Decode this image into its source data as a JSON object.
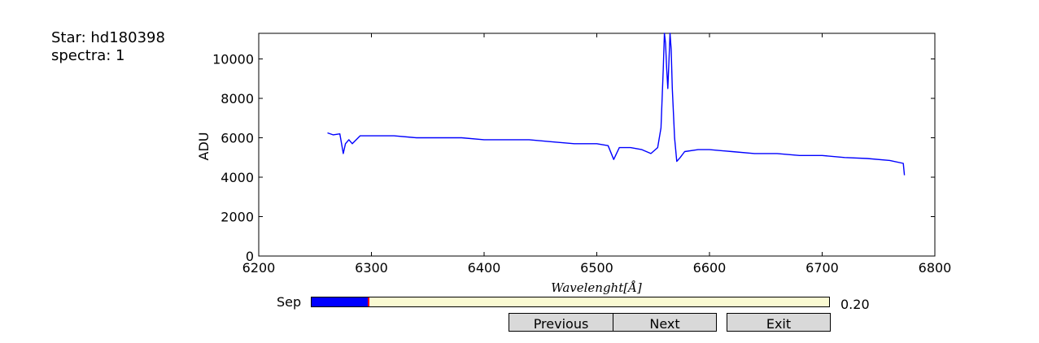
{
  "info": {
    "star_line": "Star: hd180398",
    "spectra_line": "spectra: 1"
  },
  "chart_data": {
    "type": "line",
    "title": "",
    "xlabel": "Wavelenght[Å]",
    "ylabel": "ADU",
    "xlim": [
      6200,
      6800
    ],
    "ylim": [
      0,
      11300
    ],
    "xticks": [
      "6200",
      "6300",
      "6400",
      "6500",
      "6600",
      "6700",
      "6800"
    ],
    "yticks": [
      "0",
      "2000",
      "4000",
      "6000",
      "8000",
      "10000"
    ],
    "grid": false,
    "series": [
      {
        "color": "#0000ff",
        "x": [
          6261,
          6266,
          6272,
          6275,
          6277,
          6280,
          6283,
          6290,
          6300,
          6320,
          6340,
          6360,
          6380,
          6400,
          6420,
          6440,
          6460,
          6480,
          6500,
          6510,
          6515,
          6520,
          6530,
          6540,
          6548,
          6554,
          6557,
          6559,
          6560,
          6561,
          6562,
          6563,
          6564,
          6565,
          6566,
          6567,
          6569,
          6571,
          6574,
          6578,
          6590,
          6600,
          6620,
          6640,
          6660,
          6680,
          6700,
          6720,
          6740,
          6760,
          6772,
          6773
        ],
        "y": [
          6250,
          6150,
          6200,
          5200,
          5700,
          5900,
          5700,
          6100,
          6100,
          6100,
          6000,
          6000,
          6000,
          5900,
          5900,
          5900,
          5800,
          5700,
          5700,
          5600,
          4900,
          5500,
          5500,
          5400,
          5200,
          5500,
          6500,
          9500,
          11300,
          10800,
          9500,
          8500,
          9800,
          11300,
          10500,
          8500,
          6000,
          4800,
          5000,
          5300,
          5400,
          5400,
          5300,
          5200,
          5200,
          5100,
          5100,
          5000,
          4950,
          4850,
          4700,
          4100
        ]
      }
    ]
  },
  "controls": {
    "slider_label": "Sep",
    "slider_value_text": "0.20",
    "slider_fraction": 0.2,
    "buttons": {
      "previous": "Previous",
      "next": "Next",
      "exit": "Exit"
    }
  }
}
